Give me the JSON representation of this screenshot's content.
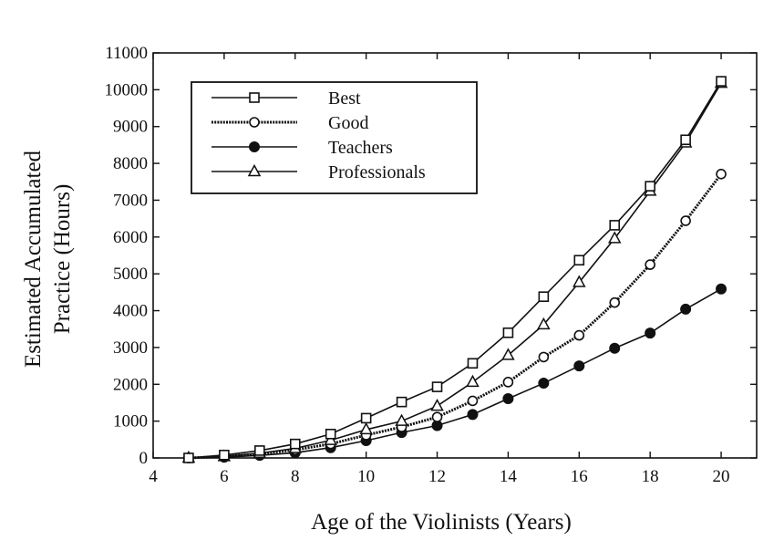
{
  "chart_data": {
    "type": "line",
    "xlabel": "Age of the Violinists (Years)",
    "ylabel_lines": [
      "Estimated Accumulated",
      "Practice (Hours)"
    ],
    "xlim": [
      4,
      21
    ],
    "ylim": [
      0,
      11000
    ],
    "xticks": [
      4,
      6,
      8,
      10,
      12,
      14,
      16,
      18,
      20
    ],
    "yticks": [
      0,
      1000,
      2000,
      3000,
      4000,
      5000,
      6000,
      7000,
      8000,
      9000,
      10000,
      11000
    ],
    "legend_position": "top-left",
    "x": [
      5,
      6,
      7,
      8,
      9,
      10,
      11,
      12,
      13,
      14,
      15,
      16,
      17,
      18,
      19,
      20
    ],
    "series": [
      {
        "name": "Best",
        "marker": "open-square",
        "line_style": "solid",
        "values": [
          0,
          80,
          200,
          380,
          650,
          1080,
          1520,
          1930,
          2570,
          3400,
          4380,
          5370,
          6320,
          7380,
          8640,
          10230
        ]
      },
      {
        "name": "Good",
        "marker": "open-circle",
        "line_style": "dotted-thick",
        "values": [
          0,
          40,
          110,
          220,
          380,
          620,
          840,
          1110,
          1550,
          2060,
          2740,
          3330,
          4220,
          5250,
          6440,
          7710
        ]
      },
      {
        "name": "Teachers",
        "marker": "filled-circle",
        "line_style": "solid",
        "values": [
          0,
          20,
          70,
          140,
          280,
          470,
          690,
          880,
          1180,
          1610,
          2030,
          2500,
          2980,
          3390,
          4040,
          4590
        ]
      },
      {
        "name": "Professionals",
        "marker": "open-triangle",
        "line_style": "solid",
        "values": [
          0,
          40,
          130,
          260,
          480,
          770,
          1000,
          1410,
          2060,
          2790,
          3620,
          4770,
          5960,
          7250,
          8560,
          10180
        ]
      }
    ]
  }
}
